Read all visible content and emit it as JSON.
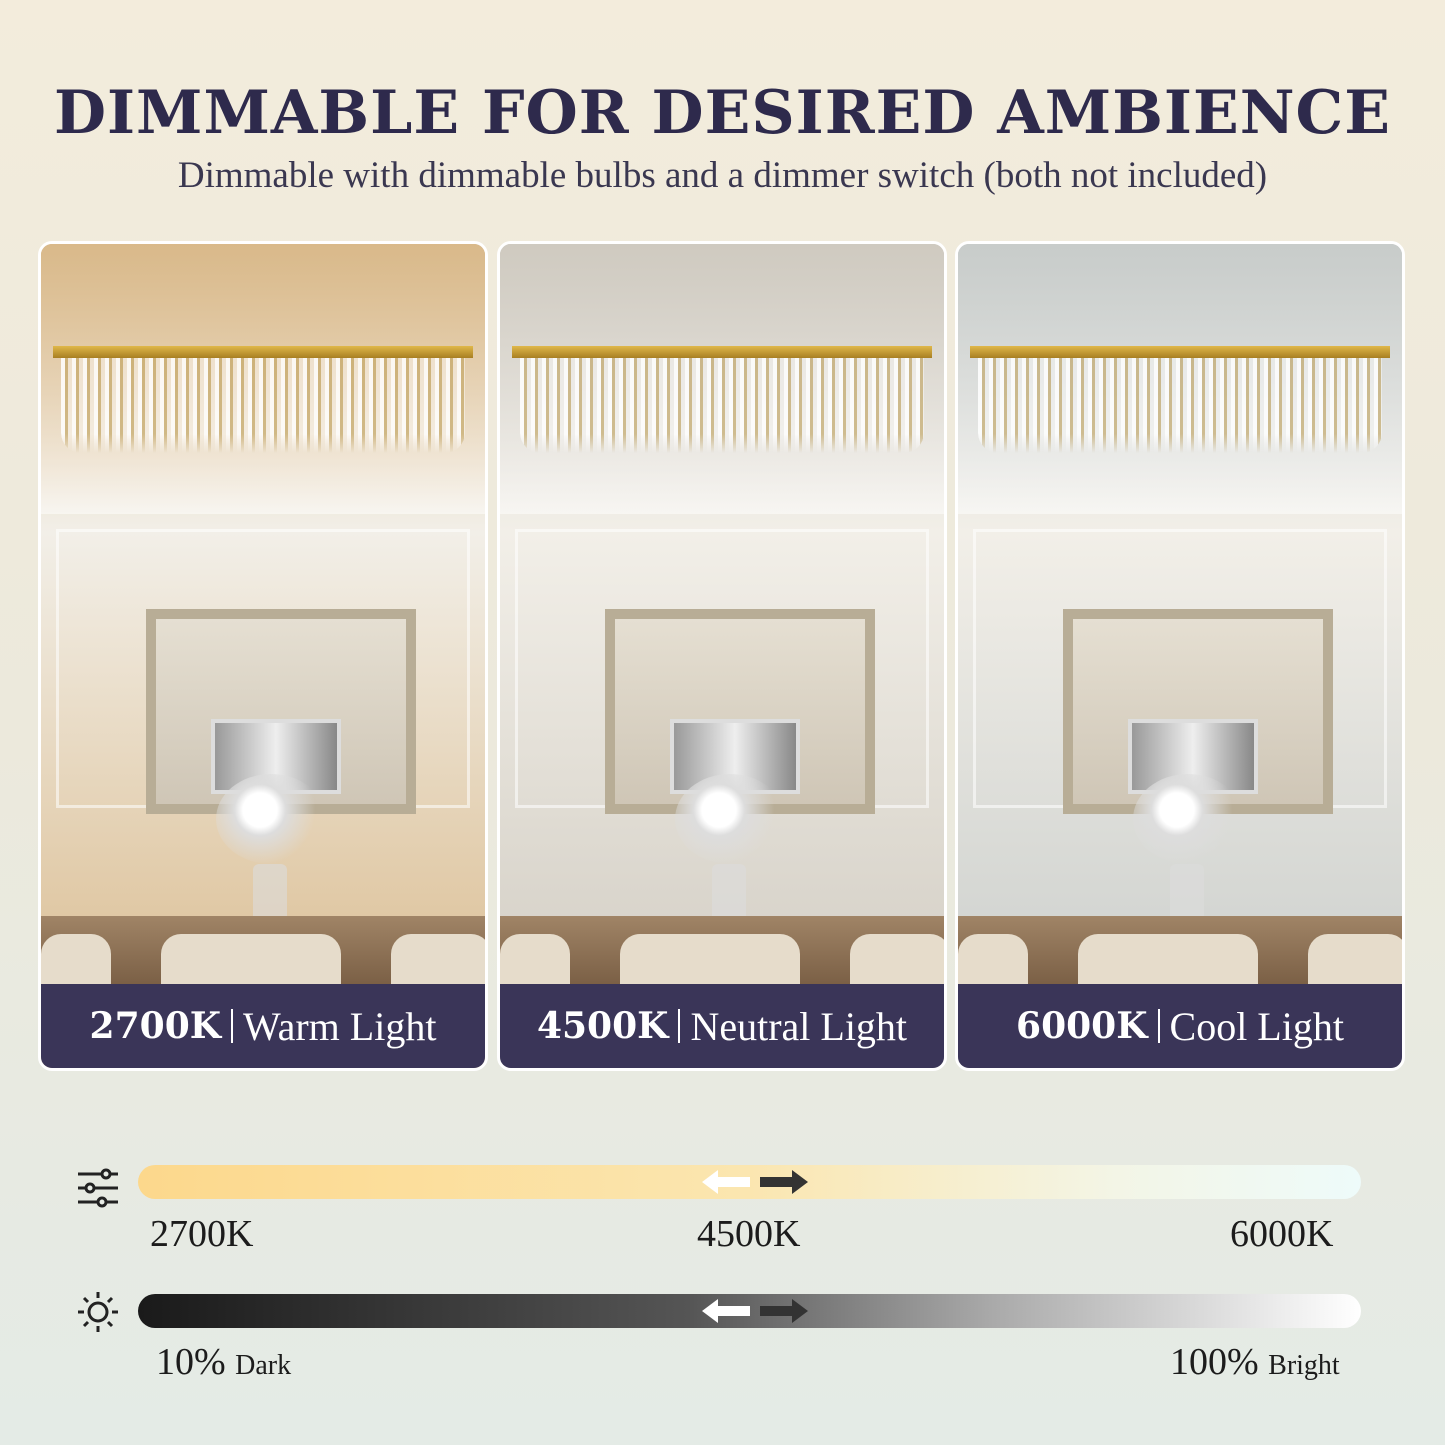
{
  "header": {
    "title": "DIMMABLE FOR DESIRED AMBIENCE",
    "subtitle": "Dimmable with dimmable bulbs and a dimmer switch (both not included)"
  },
  "panels": [
    {
      "kelvin": "2700K",
      "name": "Warm Light",
      "tint": "#d9b98a"
    },
    {
      "kelvin": "4500K",
      "name": "Neutral Light",
      "tint": "#cfcac0"
    },
    {
      "kelvin": "6000K",
      "name": "Cool Light",
      "tint": "#c8ccca"
    }
  ],
  "color_temp_scale": {
    "icon": "sliders-icon",
    "labels": [
      "2700K",
      "4500K",
      "6000K"
    ]
  },
  "brightness_scale": {
    "icon": "sun-icon",
    "min_value": "10%",
    "min_label": "Dark",
    "max_value": "100%",
    "max_label": "Bright"
  },
  "colors": {
    "title": "#2e2a4c",
    "band": "#3a3558"
  }
}
